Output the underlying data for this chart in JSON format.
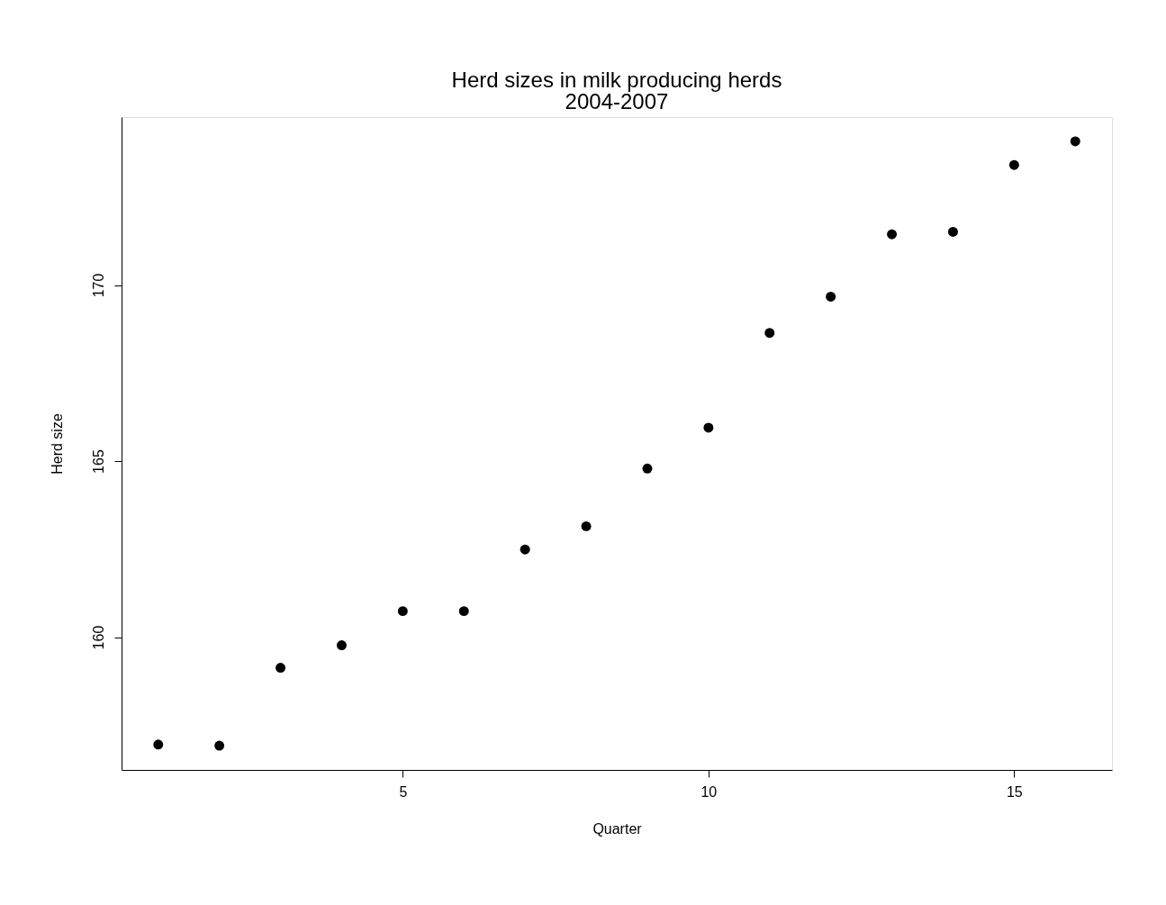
{
  "chart_data": {
    "type": "scatter",
    "title": [
      "Herd sizes in milk producing herds",
      "2004-2007"
    ],
    "xlabel": "Quarter",
    "ylabel": "Herd size",
    "x": [
      1,
      2,
      3,
      4,
      5,
      6,
      7,
      8,
      9,
      10,
      11,
      12,
      13,
      14,
      15,
      16
    ],
    "series": [
      {
        "color": "#000000",
        "values": [
          156.95,
          156.92,
          159.13,
          159.77,
          160.74,
          160.74,
          162.49,
          163.15,
          164.79,
          165.95,
          168.64,
          169.67,
          171.44,
          171.51,
          173.41,
          174.08
        ]
      }
    ],
    "xlim": [
      0.4,
      16.6
    ],
    "ylim": [
      156.23,
      174.77
    ],
    "xticks": [
      5,
      10,
      15
    ],
    "yticks": [
      160,
      165,
      170
    ],
    "marker": "circle",
    "grid": false
  }
}
